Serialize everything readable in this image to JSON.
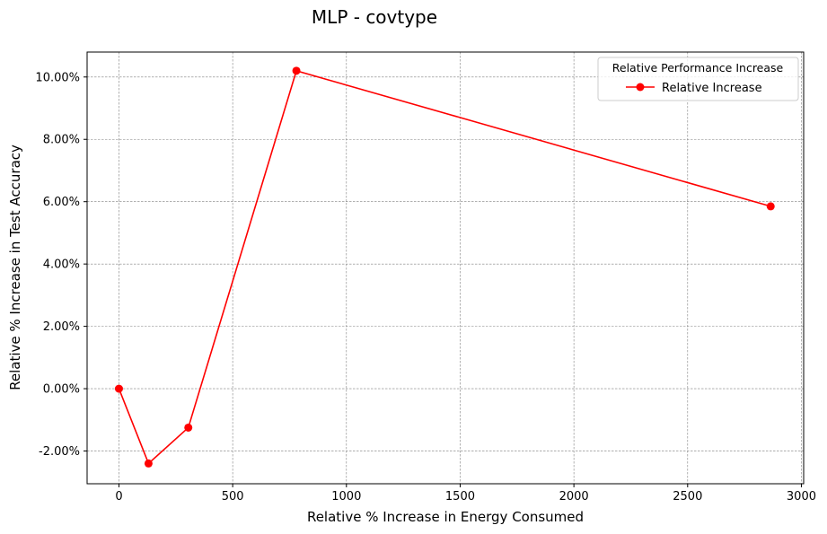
{
  "chart_data": {
    "type": "line",
    "title": "MLP - covtype",
    "xlabel": "Relative % Increase in Energy Consumed",
    "ylabel": "Relative % Increase in Test Accuracy",
    "xlim": [
      -140,
      3010
    ],
    "ylim": [
      -3.05,
      10.8
    ],
    "x_ticks": [
      0,
      500,
      1000,
      1500,
      2000,
      2500,
      3000
    ],
    "x_tick_labels": [
      "0",
      "500",
      "1000",
      "1500",
      "2000",
      "2500",
      "3000"
    ],
    "y_ticks": [
      -2,
      0,
      2,
      4,
      6,
      8,
      10
    ],
    "y_tick_labels": [
      "-2.00%",
      "0.00%",
      "2.00%",
      "4.00%",
      "6.00%",
      "8.00%",
      "10.00%"
    ],
    "grid": true,
    "legend": {
      "title": "Relative Performance Increase",
      "placement": "top-right",
      "entries": [
        "Relative Increase"
      ]
    },
    "series": [
      {
        "name": "Relative Increase",
        "color": "#ff0000",
        "marker": "circle",
        "x": [
          0,
          130,
          305,
          780,
          2865
        ],
        "y": [
          0.0,
          -2.4,
          -1.25,
          10.2,
          5.85
        ]
      }
    ]
  }
}
